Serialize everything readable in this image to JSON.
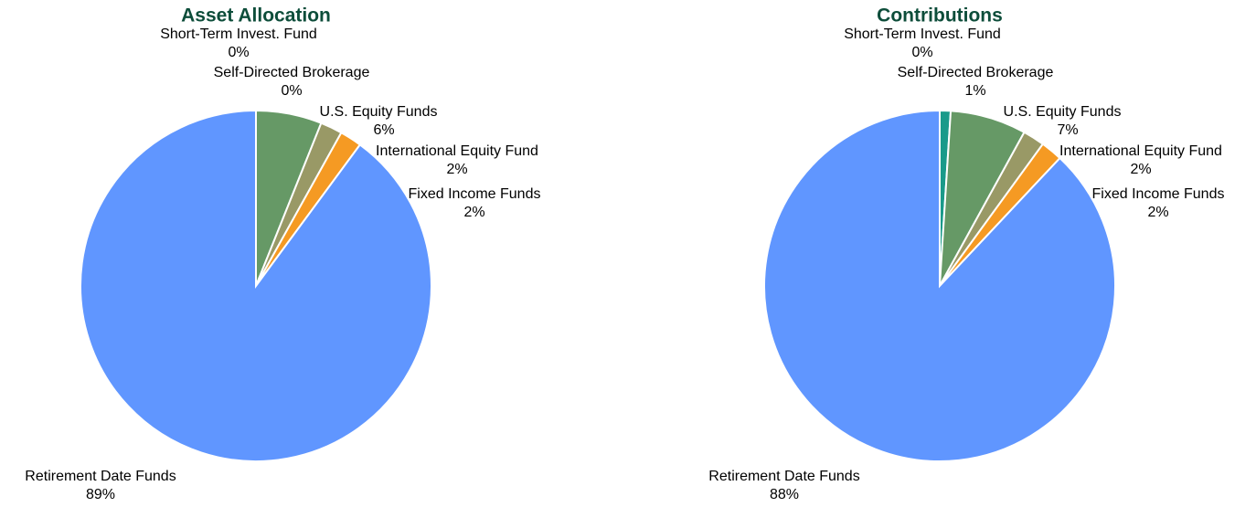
{
  "chart_data": [
    {
      "type": "pie",
      "title": "Asset Allocation",
      "categories": [
        "Short-Term Invest. Fund",
        "Self-Directed Brokerage",
        "U.S. Equity Funds",
        "International Equity Fund",
        "Fixed Income Funds",
        "Retirement Date Funds"
      ],
      "values": [
        0,
        0,
        6,
        2,
        2,
        89
      ],
      "value_labels": [
        "0%",
        "0%",
        "6%",
        "2%",
        "2%",
        "89%"
      ],
      "colors": [
        "#ffffff",
        "#1a9a8a",
        "#669966",
        "#999966",
        "#f59a23",
        "#6096ff"
      ]
    },
    {
      "type": "pie",
      "title": "Contributions",
      "categories": [
        "Short-Term Invest. Fund",
        "Self-Directed Brokerage",
        "U.S. Equity Funds",
        "International Equity Fund",
        "Fixed Income Funds",
        "Retirement Date Funds"
      ],
      "values": [
        0,
        1,
        7,
        2,
        2,
        88
      ],
      "value_labels": [
        "0%",
        "1%",
        "7%",
        "2%",
        "2%",
        "88%"
      ],
      "colors": [
        "#ffffff",
        "#1a9a8a",
        "#669966",
        "#999966",
        "#f59a23",
        "#6096ff"
      ]
    }
  ]
}
